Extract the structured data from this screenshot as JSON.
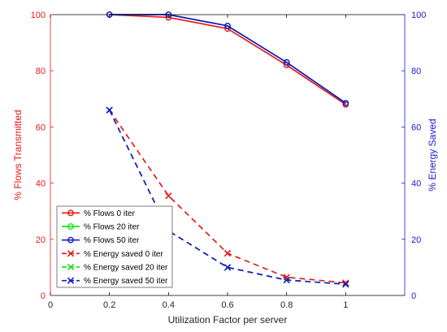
{
  "chart_data": {
    "type": "line",
    "title": "",
    "xlabel": "Utilization Factor per server",
    "ylabel_left": "% Flows Transmitted",
    "ylabel_right": "% Energy Saved",
    "xlim": [
      0,
      1.2
    ],
    "ylim_left": [
      0,
      100
    ],
    "ylim_right": [
      0,
      100
    ],
    "x_ticks": [
      "0",
      "0.2",
      "0.4",
      "0.6",
      "0.8",
      "1"
    ],
    "y_ticks_left": [
      "0",
      "20",
      "40",
      "60",
      "80",
      "100"
    ],
    "y_ticks_right": [
      "0",
      "20",
      "40",
      "60",
      "80",
      "100"
    ],
    "grid": false,
    "legend_position": "lower-left",
    "colors": {
      "left_axis": "#e8191a",
      "right_axis": "#1a1acc"
    },
    "x": [
      0.2,
      0.4,
      0.6,
      0.8,
      1.0
    ],
    "series": [
      {
        "name": "% Flows 0 iter",
        "axis": "left",
        "style": "solid",
        "marker": "o",
        "color": "#e8191a",
        "values": [
          100,
          99,
          95,
          82,
          68
        ]
      },
      {
        "name": "% Flows 20 iter",
        "axis": "left",
        "style": "solid",
        "marker": "o",
        "color": "#19e619",
        "values": [
          100,
          100,
          96,
          83,
          68.5
        ]
      },
      {
        "name": "% Flows 50 iter",
        "axis": "left",
        "style": "solid",
        "marker": "o",
        "color": "#1a1acc",
        "values": [
          100,
          100,
          96,
          83,
          68.5
        ]
      },
      {
        "name": "% Energy saved 0 iter",
        "axis": "right",
        "style": "dashed",
        "marker": "x",
        "color": "#e8191a",
        "values": [
          66,
          35.5,
          15,
          6.5,
          4.5
        ]
      },
      {
        "name": "% Energy saved 20 iter",
        "axis": "right",
        "style": "dashed",
        "marker": "x",
        "color": "#19e619",
        "values": [
          66,
          23,
          10,
          5.5,
          4
        ]
      },
      {
        "name": "% Energy saved 50 iter",
        "axis": "right",
        "style": "dashed",
        "marker": "x",
        "color": "#1a1acc",
        "values": [
          66,
          23,
          10,
          5.5,
          4
        ]
      }
    ]
  }
}
